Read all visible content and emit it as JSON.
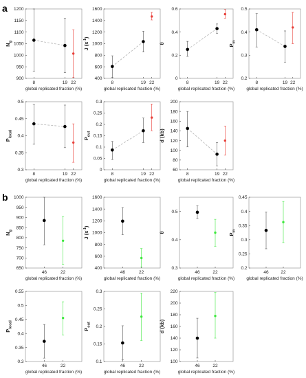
{
  "figure": {
    "label_a": "a",
    "label_b": "b"
  },
  "colors": {
    "black": "#000000",
    "red": "#e8403a",
    "green": "#3ee83e",
    "dashed": "#b5b5b5",
    "err": "#555555"
  },
  "chart_data": [
    {
      "panel": "a",
      "type": "scatter",
      "ylabel": "N",
      "ysub": "g",
      "xlabel": "global replicated fraction (%)",
      "yticks": [
        900,
        950,
        1000,
        1050,
        1100,
        1150,
        1200
      ],
      "ylim": [
        900,
        1200
      ],
      "xticks": [
        8,
        19,
        22
      ],
      "xlim": [
        5,
        25
      ],
      "series": [
        {
          "color": "black",
          "dashed": true,
          "points": [
            {
              "x": 8,
              "y": 1065,
              "lo": 930,
              "hi": 1200
            },
            {
              "x": 19,
              "y": 1042,
              "lo": 925,
              "hi": 1160
            }
          ]
        },
        {
          "color": "red",
          "points": [
            {
              "x": 22,
              "y": 1007,
              "lo": 905,
              "hi": 1110
            }
          ]
        }
      ]
    },
    {
      "panel": "a",
      "type": "scatter",
      "ylabel": "J (s",
      "ysup": "-1",
      "ysuffix": ")",
      "xlabel": "global replicated fraction (%)",
      "yticks": [
        400,
        600,
        800,
        1000,
        1200,
        1400,
        1600
      ],
      "ylim": [
        400,
        1600
      ],
      "xticks": [
        8,
        19,
        22
      ],
      "xlim": [
        5,
        25
      ],
      "series": [
        {
          "color": "black",
          "dashed": true,
          "points": [
            {
              "x": 8,
              "y": 605,
              "lo": 420,
              "hi": 790
            },
            {
              "x": 19,
              "y": 1035,
              "lo": 855,
              "hi": 1215
            }
          ]
        },
        {
          "color": "red",
          "points": [
            {
              "x": 22,
              "y": 1470,
              "lo": 1410,
              "hi": 1540
            }
          ]
        }
      ]
    },
    {
      "panel": "a",
      "type": "scatter",
      "ylabel": "θ",
      "xlabel": "global replicated fraction (%)",
      "yticks": [
        0,
        0.2,
        0.4,
        0.6
      ],
      "ylim": [
        0,
        0.6
      ],
      "xticks": [
        8,
        19,
        22
      ],
      "xlim": [
        5,
        25
      ],
      "series": [
        {
          "color": "black",
          "dashed": true,
          "points": [
            {
              "x": 8,
              "y": 0.25,
              "lo": 0.19,
              "hi": 0.32
            },
            {
              "x": 19,
              "y": 0.43,
              "lo": 0.39,
              "hi": 0.47
            }
          ]
        },
        {
          "color": "red",
          "points": [
            {
              "x": 22,
              "y": 0.555,
              "lo": 0.52,
              "hi": 0.595
            }
          ]
        }
      ]
    },
    {
      "panel": "a",
      "type": "scatter",
      "ylabel": "P",
      "ysub": "in",
      "xlabel": "global replicated fraction (%)",
      "yticks": [
        0.2,
        0.3,
        0.4,
        0.5
      ],
      "ylim": [
        0.2,
        0.5
      ],
      "xticks": [
        8,
        19,
        22
      ],
      "xlim": [
        5,
        25
      ],
      "series": [
        {
          "color": "black",
          "dashed": true,
          "points": [
            {
              "x": 8,
              "y": 0.41,
              "lo": 0.335,
              "hi": 0.48
            },
            {
              "x": 19,
              "y": 0.338,
              "lo": 0.27,
              "hi": 0.405
            }
          ]
        },
        {
          "color": "red",
          "points": [
            {
              "x": 22,
              "y": 0.42,
              "lo": 0.35,
              "hi": 0.485
            }
          ]
        }
      ]
    },
    {
      "panel": "a",
      "type": "scatter",
      "ylabel": "P",
      "ysub": "local",
      "xlabel": "global replicated fraction (%)",
      "yticks": [
        0.3,
        0.35,
        0.4,
        0.45,
        0.5
      ],
      "ylim": [
        0.3,
        0.5
      ],
      "xticks": [
        8,
        19,
        22
      ],
      "xlim": [
        5,
        25
      ],
      "series": [
        {
          "color": "black",
          "dashed": true,
          "points": [
            {
              "x": 8,
              "y": 0.435,
              "lo": 0.375,
              "hi": 0.492
            },
            {
              "x": 19,
              "y": 0.427,
              "lo": 0.365,
              "hi": 0.49
            }
          ]
        },
        {
          "color": "red",
          "points": [
            {
              "x": 22,
              "y": 0.38,
              "lo": 0.322,
              "hi": 0.435
            }
          ]
        }
      ]
    },
    {
      "panel": "a",
      "type": "scatter",
      "ylabel": "P",
      "ysub": "out",
      "xlabel": "global replicated fraction (%)",
      "yticks": [
        0,
        0.05,
        0.1,
        0.15,
        0.2,
        0.25,
        0.3
      ],
      "ylim": [
        0,
        0.3
      ],
      "xticks": [
        8,
        19,
        22
      ],
      "xlim": [
        5,
        25
      ],
      "series": [
        {
          "color": "black",
          "dashed": true,
          "points": [
            {
              "x": 8,
              "y": 0.087,
              "lo": 0.045,
              "hi": 0.125
            },
            {
              "x": 19,
              "y": 0.172,
              "lo": 0.12,
              "hi": 0.228
            }
          ]
        },
        {
          "color": "red",
          "points": [
            {
              "x": 22,
              "y": 0.23,
              "lo": 0.172,
              "hi": 0.29
            }
          ]
        }
      ]
    },
    {
      "panel": "a",
      "type": "scatter",
      "ylabel": "d (kb)",
      "xlabel": "global replicated fraction (%)",
      "yticks": [
        60,
        80,
        100,
        120,
        140,
        160,
        180,
        200
      ],
      "ylim": [
        60,
        200
      ],
      "xticks": [
        8,
        19,
        22
      ],
      "xlim": [
        5,
        25
      ],
      "series": [
        {
          "color": "black",
          "dashed": true,
          "points": [
            {
              "x": 8,
              "y": 145,
              "lo": 107,
              "hi": 180
            },
            {
              "x": 19,
              "y": 92,
              "lo": 68,
              "hi": 116
            }
          ]
        },
        {
          "color": "red",
          "points": [
            {
              "x": 22,
              "y": 120,
              "lo": 90,
              "hi": 150
            }
          ]
        }
      ]
    },
    {
      "panel": "b",
      "type": "scatter",
      "ylabel": "N",
      "ysub": "g",
      "xlabel": "global replicated fraction (%)",
      "yticks": [
        650,
        700,
        750,
        800,
        850,
        900,
        950,
        1000
      ],
      "ylim": [
        650,
        1000
      ],
      "xticks": [
        46,
        22
      ],
      "xlim": [
        0,
        3
      ],
      "series": [
        {
          "color": "black",
          "points": [
            {
              "x": 1,
              "y": 885,
              "lo": 765,
              "hi": 1000
            }
          ]
        },
        {
          "color": "green",
          "points": [
            {
              "x": 2,
              "y": 785,
              "lo": 668,
              "hi": 905
            }
          ]
        }
      ]
    },
    {
      "panel": "b",
      "type": "scatter",
      "ylabel": "J (s",
      "ysup": "-1",
      "ysuffix": ")",
      "xlabel": "global replicated fraction (%)",
      "yticks": [
        400,
        600,
        800,
        1000,
        1200,
        1400,
        1600
      ],
      "ylim": [
        400,
        1600
      ],
      "xticks": [
        46,
        22
      ],
      "xlim": [
        0,
        3
      ],
      "series": [
        {
          "color": "black",
          "points": [
            {
              "x": 1,
              "y": 1195,
              "lo": 965,
              "hi": 1425
            }
          ]
        },
        {
          "color": "green",
          "points": [
            {
              "x": 2,
              "y": 570,
              "lo": 420,
              "hi": 730
            }
          ]
        }
      ]
    },
    {
      "panel": "b",
      "type": "scatter",
      "ylabel": "θ",
      "xlabel": "global replicated fraction (%)",
      "yticks": [
        0.3,
        0.4,
        0.5
      ],
      "ylim": [
        0.3,
        0.55
      ],
      "xticks": [
        46,
        22
      ],
      "xlim": [
        0,
        3
      ],
      "series": [
        {
          "color": "black",
          "points": [
            {
              "x": 1,
              "y": 0.497,
              "lo": 0.475,
              "hi": 0.52
            }
          ]
        },
        {
          "color": "green",
          "points": [
            {
              "x": 2,
              "y": 0.425,
              "lo": 0.377,
              "hi": 0.472
            }
          ]
        }
      ]
    },
    {
      "panel": "b",
      "type": "scatter",
      "ylabel": "P",
      "ysub": "in",
      "xlabel": "global replicated fraction (%)",
      "yticks": [
        0.2,
        0.25,
        0.3,
        0.35,
        0.4,
        0.45
      ],
      "ylim": [
        0.2,
        0.45
      ],
      "xticks": [
        46,
        22
      ],
      "xlim": [
        0,
        3
      ],
      "series": [
        {
          "color": "black",
          "points": [
            {
              "x": 1,
              "y": 0.333,
              "lo": 0.268,
              "hi": 0.398
            }
          ]
        },
        {
          "color": "green",
          "points": [
            {
              "x": 2,
              "y": 0.362,
              "lo": 0.29,
              "hi": 0.435
            }
          ]
        }
      ]
    },
    {
      "panel": "b",
      "type": "scatter",
      "ylabel": "P",
      "ysub": "local",
      "xlabel": "global replicated fraction (%)",
      "yticks": [
        0.3,
        0.35,
        0.4,
        0.45,
        0.5,
        0.55
      ],
      "ylim": [
        0.3,
        0.55
      ],
      "xticks": [
        46,
        22
      ],
      "xlim": [
        0,
        3
      ],
      "series": [
        {
          "color": "black",
          "points": [
            {
              "x": 1,
              "y": 0.372,
              "lo": 0.312,
              "hi": 0.432
            }
          ]
        },
        {
          "color": "green",
          "points": [
            {
              "x": 2,
              "y": 0.455,
              "lo": 0.395,
              "hi": 0.513
            }
          ]
        }
      ]
    },
    {
      "panel": "b",
      "type": "scatter",
      "ylabel": "P",
      "ysub": "out",
      "xlabel": "global replicated fraction (%)",
      "yticks": [
        0.1,
        0.15,
        0.2,
        0.25,
        0.3
      ],
      "ylim": [
        0.1,
        0.3
      ],
      "xticks": [
        46,
        22
      ],
      "xlim": [
        0,
        3
      ],
      "series": [
        {
          "color": "black",
          "points": [
            {
              "x": 1,
              "y": 0.153,
              "lo": 0.105,
              "hi": 0.202
            }
          ]
        },
        {
          "color": "green",
          "points": [
            {
              "x": 2,
              "y": 0.228,
              "lo": 0.16,
              "hi": 0.295
            }
          ]
        }
      ]
    },
    {
      "panel": "b",
      "type": "scatter",
      "ylabel": "d (kb)",
      "xlabel": "global replicated fraction (%)",
      "yticks": [
        100,
        120,
        140,
        160,
        180,
        200,
        220
      ],
      "ylim": [
        100,
        220
      ],
      "xticks": [
        46,
        22
      ],
      "xlim": [
        0,
        3
      ],
      "series": [
        {
          "color": "black",
          "points": [
            {
              "x": 1,
              "y": 140,
              "lo": 106,
              "hi": 174
            }
          ]
        },
        {
          "color": "green",
          "points": [
            {
              "x": 2,
              "y": 178,
              "lo": 140,
              "hi": 218
            }
          ]
        }
      ]
    }
  ]
}
